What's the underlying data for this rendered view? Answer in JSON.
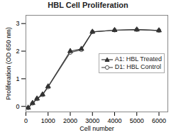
{
  "chart_data": {
    "type": "line",
    "title": "HBL Cell Proliferation",
    "xlabel": "Cell number",
    "ylabel": "Proliferation (OD 650 nm)",
    "x": [
      100,
      300,
      500,
      750,
      1000,
      2000,
      2500,
      3000,
      4000,
      5000,
      6000
    ],
    "series": [
      {
        "name": "A1: HBL Treated",
        "color": "#333333",
        "marker": "triangle",
        "values": [
          -0.05,
          0.12,
          0.28,
          0.43,
          0.72,
          2.0,
          2.08,
          2.7,
          2.76,
          2.78,
          2.75
        ],
        "yerr": [
          0.02,
          0.02,
          0.03,
          0.04,
          0.04,
          0.08,
          0.06,
          0.04,
          0.03,
          0.02,
          0.02
        ]
      },
      {
        "name": "D1: HBL Control",
        "color": "#555555",
        "marker": "circle",
        "values": [
          -0.05,
          0.11,
          0.27,
          0.42,
          0.7,
          1.95,
          2.05,
          2.7,
          2.76,
          2.78,
          2.75
        ],
        "yerr": [
          0.02,
          0.02,
          0.03,
          0.04,
          0.04,
          0.08,
          0.06,
          0.04,
          0.03,
          0.02,
          0.02
        ]
      }
    ],
    "xlim": [
      0,
      6400
    ],
    "ylim": [
      -0.2,
      3.3
    ],
    "xticks": [
      0,
      1000,
      2000,
      3000,
      4000,
      5000,
      6000
    ],
    "yticks": [
      0,
      1,
      2,
      3
    ],
    "legend": "right"
  }
}
